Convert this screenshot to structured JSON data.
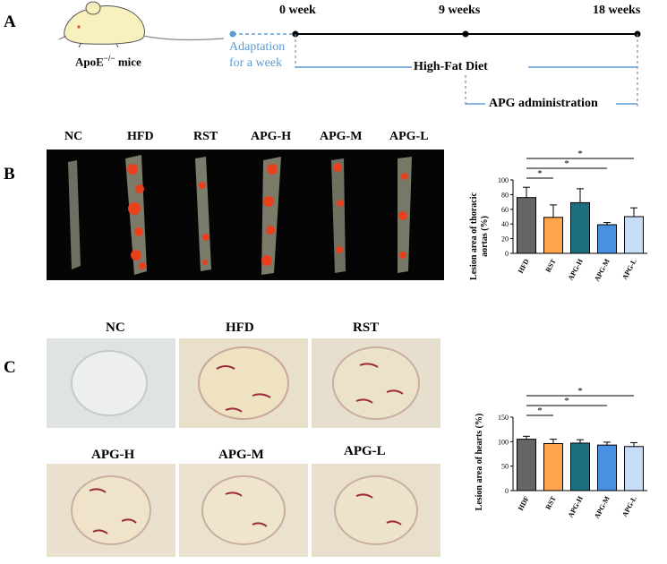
{
  "panels": {
    "a": "A",
    "b": "B",
    "c": "C"
  },
  "timeline": {
    "mouse_label": "ApoE",
    "mouse_super": "−/−",
    "mouse_suffix": " mice",
    "adapt_line1": "Adaptation",
    "adapt_line2": "for a week",
    "week0": "0 week",
    "week9": "9 weeks",
    "week18": "18 weeks",
    "hfd": "High-Fat Diet",
    "apg": "APG administration",
    "colors": {
      "adapt": "#5b9bd5",
      "axis": "#000000",
      "diet": "#5b9bd5",
      "dash": "#8c8c8c"
    }
  },
  "aorta_groups": [
    "NC",
    "HFD",
    "RST",
    "APG-H",
    "APG-M",
    "APG-L"
  ],
  "heart_groups_top": [
    "NC",
    "HFD",
    "RST"
  ],
  "heart_groups_bottom": [
    "APG-H",
    "APG-M",
    "APG-L"
  ],
  "chart_data": [
    {
      "type": "bar",
      "categories": [
        "HFD",
        "RST",
        "APG-H",
        "APG-M",
        "APG-L"
      ],
      "values": [
        76,
        49,
        69,
        39,
        50
      ],
      "errors": [
        14,
        17,
        19,
        3,
        12
      ],
      "colors": [
        "#666666",
        "#ffa64d",
        "#1b6f7f",
        "#4a90e2",
        "#c6dcf7"
      ],
      "ylabel_line1": "Lesion area of thoracic",
      "ylabel_line2": "aortas (%)",
      "ylim": [
        0,
        100
      ],
      "yticks": [
        0,
        20,
        40,
        60,
        80,
        100
      ],
      "significance": [
        {
          "from": "HFD",
          "to": "RST",
          "mark": "*"
        },
        {
          "from": "HFD",
          "to": "APG-M",
          "mark": "*"
        },
        {
          "from": "HFD",
          "to": "APG-L",
          "mark": "*"
        }
      ]
    },
    {
      "type": "bar",
      "categories": [
        "HDF",
        "RST",
        "APG-H",
        "APG-M",
        "APG-L"
      ],
      "values": [
        105,
        96,
        97,
        93,
        90
      ],
      "errors": [
        6,
        9,
        7,
        6,
        8
      ],
      "colors": [
        "#666666",
        "#ffa64d",
        "#1b6f7f",
        "#4a90e2",
        "#c6dcf7"
      ],
      "ylabel_line1": "Lesion area of hearts (%)",
      "ylim": [
        0,
        150
      ],
      "yticks": [
        0,
        50,
        100,
        150
      ],
      "significance": [
        {
          "from": "HDF",
          "to": "RST",
          "mark": "*"
        },
        {
          "from": "HDF",
          "to": "APG-M",
          "mark": "*"
        },
        {
          "from": "HDF",
          "to": "APG-L",
          "mark": "*"
        }
      ]
    }
  ]
}
